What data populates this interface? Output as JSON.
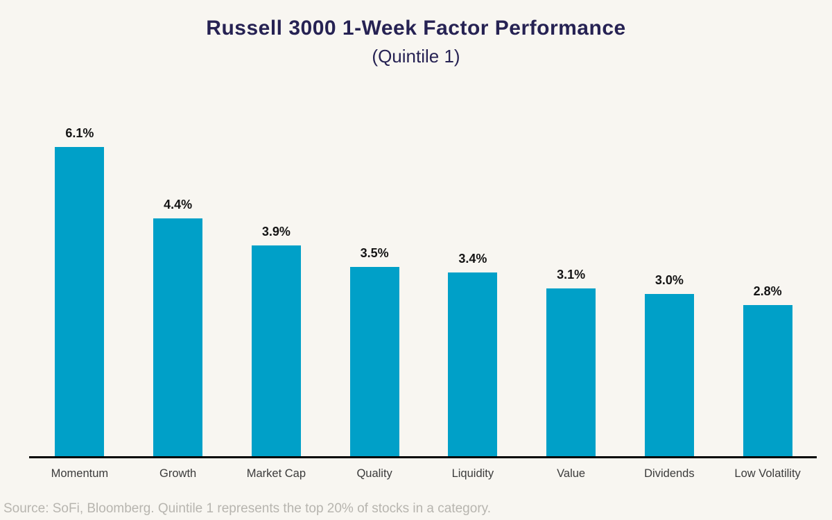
{
  "header": {
    "title": "Russell 3000 1-Week Factor Performance",
    "subtitle": "(Quintile 1)"
  },
  "footer": {
    "source_note": "Source: SoFi, Bloomberg. Quintile 1 represents the top 20% of stocks in a category."
  },
  "colors": {
    "background": "#f8f6f1",
    "bar": "#00a0c8",
    "title": "#262253",
    "value_label": "#141414",
    "axis_label": "#3b3b3b",
    "axis_line": "#000000",
    "source_note": "#b7b5af"
  },
  "chart_data": {
    "type": "bar",
    "title": "Russell 3000 1-Week Factor Performance",
    "subtitle": "(Quintile 1)",
    "categories": [
      "Momentum",
      "Growth",
      "Market Cap",
      "Quality",
      "Liquidity",
      "Value",
      "Dividends",
      "Low Volatility"
    ],
    "values": [
      6.1,
      4.4,
      3.9,
      3.5,
      3.4,
      3.1,
      3.0,
      2.8
    ],
    "value_labels": [
      "6.1%",
      "4.4%",
      "3.9%",
      "3.5%",
      "3.4%",
      "3.1%",
      "3.0%",
      "2.8%"
    ],
    "xlabel": "",
    "ylabel": "",
    "ylim": [
      0,
      6.5
    ],
    "grid": false,
    "legend": "none",
    "bar_color": "#00a0c8"
  }
}
